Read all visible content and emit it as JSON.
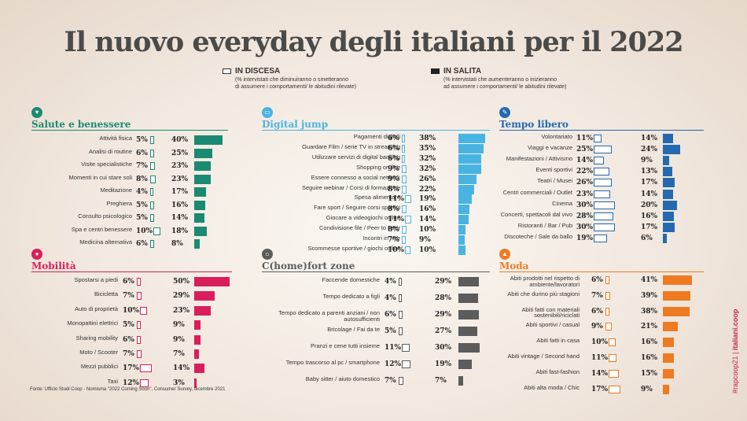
{
  "title": "Il nuovo everyday degli italiani per il 2022",
  "legend": {
    "down": {
      "title": "IN DISCESA",
      "note1": "(% intervistati che diminuiranno o smetteranno",
      "note2": "di assumere i comportamenti/ le abitudini rilevate)"
    },
    "up": {
      "title": "IN SALITA",
      "note1": "(% intervistati che aumenteranno o inizieranno",
      "note2": "ad assumere i comportamenti/ le abitudini rilevate)"
    }
  },
  "colors": {
    "salute": "#1a8a72",
    "digital": "#49b4e2",
    "tempo": "#2469b0",
    "mobilita": "#d91e5c",
    "chome": "#5c5c5c",
    "moda": "#ee7a22"
  },
  "icons": {
    "salute": "heart-icon",
    "digital": "laptop-icon",
    "tempo": "palette-icon",
    "mobilita": "scooter-icon",
    "chome": "house-icon",
    "moda": "tshirt-icon"
  },
  "source": "Fonte: Ufficio Studi Coop - Nomisma \"2022 Coming Soon\", Consumer Survey, dicembre 2021",
  "side": {
    "tag": "#rapcoop21",
    "site": "italiani.coop"
  },
  "chart_data": [
    {
      "type": "bar",
      "title": "Salute e benessere",
      "categories": [
        "Attività fisica",
        "Analisi di routine",
        "Visite specialistiche",
        "Momenti in cui stare soli",
        "Meditazione",
        "Preghiera",
        "Consulto psicologico",
        "Spa e centri benessere",
        "Medicina alternativa"
      ],
      "down": [
        5,
        6,
        7,
        8,
        4,
        5,
        5,
        10,
        6
      ],
      "up": [
        40,
        25,
        23,
        23,
        17,
        16,
        14,
        18,
        8
      ]
    },
    {
      "type": "bar",
      "title": "Digital jump",
      "categories": [
        "Pagamenti digitali",
        "Guardare Film / serie TV in streaming",
        "Utilizzare servizi di digital banking",
        "Shopping on line",
        "Essere connesso a social network",
        "Seguire webinar / Corsi di formazione",
        "Spesa alimentare",
        "Fare sport / Seguire corsi sportivi",
        "Giocare a videogiochi online",
        "Condivisione file / Peer to Peer",
        "Incontri in rete",
        "Scommesse sportive / giochi online"
      ],
      "down": [
        6,
        6,
        6,
        9,
        9,
        8,
        11,
        8,
        11,
        8,
        7,
        10
      ],
      "up": [
        38,
        35,
        32,
        32,
        26,
        22,
        19,
        16,
        14,
        10,
        9,
        10
      ]
    },
    {
      "type": "bar",
      "title": "Tempo libero",
      "categories": [
        "Volontariato",
        "Viaggi e vacanze",
        "Manifestazioni / Attivismo",
        "Eventi sportivi",
        "Teatri / Musei",
        "Centri commerciali / Outlet",
        "Cinema",
        "Concerti, spettacoli dal vivo",
        "Ristoranti / Bar / Pub",
        "Discoteche / Sale da ballo"
      ],
      "down": [
        11,
        25,
        14,
        22,
        26,
        23,
        30,
        28,
        30,
        19
      ],
      "up": [
        14,
        24,
        9,
        13,
        17,
        14,
        20,
        16,
        17,
        6
      ]
    },
    {
      "type": "bar",
      "title": "Mobilità",
      "categories": [
        "Spostarsi a piedi",
        "Bicicletta",
        "Auto di proprietà",
        "Monopattini elettrici",
        "Sharing mobility",
        "Moto / Scooter",
        "Mezzi pubblici",
        "Taxi"
      ],
      "down": [
        6,
        7,
        10,
        5,
        6,
        7,
        17,
        12
      ],
      "up": [
        50,
        29,
        23,
        9,
        9,
        7,
        14,
        3
      ]
    },
    {
      "type": "bar",
      "title": "C(home)fort zone",
      "categories": [
        "Faccende domestiche",
        "Tempo dedicato a figli",
        "Tempo dedicato a parenti anziani / non autosufficienti",
        "Bricolage / Fai da te",
        "Pranzi e cene tutti insieme",
        "Tempo trascorso al pc / smartphone",
        "Baby sitter / aiuto domestico"
      ],
      "down": [
        4,
        4,
        6,
        5,
        11,
        12,
        7
      ],
      "up": [
        29,
        28,
        29,
        27,
        30,
        19,
        7
      ]
    },
    {
      "type": "bar",
      "title": "Moda",
      "categories": [
        "Abiti prodotti nel rispetto di ambiente/lavoratori",
        "Abiti che durino più stagioni",
        "Abiti fatti con materiali sostenibili/riciclati",
        "Abiti sportivi / casual",
        "Abiti fatti in casa",
        "Abiti vintage / Second hand",
        "Abiti fast-fashion",
        "Abiti alta moda / Chic"
      ],
      "down": [
        6,
        7,
        6,
        9,
        10,
        11,
        14,
        17
      ],
      "up": [
        41,
        39,
        38,
        21,
        16,
        16,
        15,
        9
      ]
    }
  ]
}
